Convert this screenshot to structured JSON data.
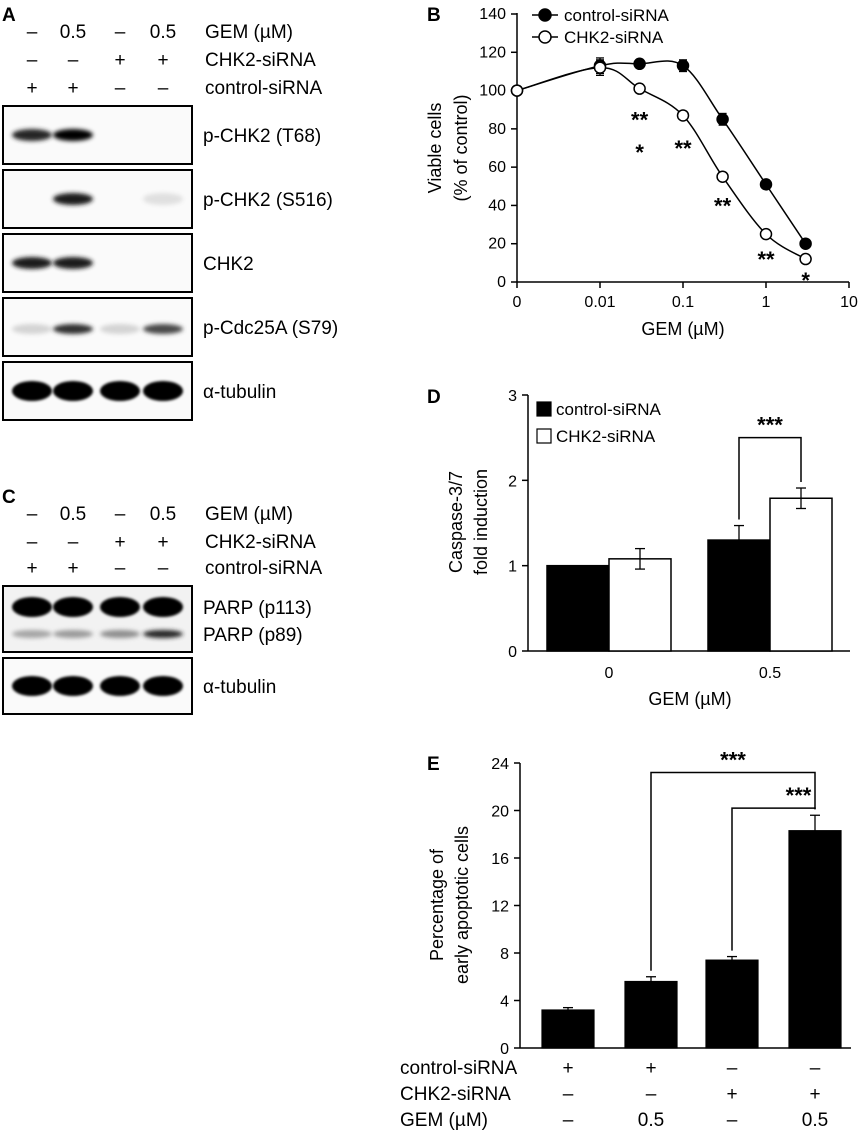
{
  "panel_labels": {
    "a": "A",
    "b": "B",
    "c": "C",
    "d": "D",
    "e": "E"
  },
  "blot_a": {
    "header": {
      "rows": [
        {
          "label": "GEM (µM)",
          "cells": [
            "–",
            "0.5",
            "–",
            "0.5"
          ]
        },
        {
          "label": "CHK2-siRNA",
          "cells": [
            "–",
            "–",
            "+",
            "+"
          ]
        },
        {
          "label": "control-siRNA",
          "cells": [
            "+",
            "+",
            "–",
            "–"
          ]
        }
      ]
    },
    "strips": [
      {
        "label": "p-CHK2 (T68)",
        "intensity": [
          0.85,
          1.0,
          0,
          0
        ]
      },
      {
        "label": "p-CHK2 (S516)",
        "intensity": [
          0,
          0.9,
          0,
          0.05
        ]
      },
      {
        "label": "CHK2",
        "intensity": [
          0.9,
          0.9,
          0,
          0
        ]
      },
      {
        "label": "p-Cdc25A (S79)",
        "intensity": [
          0.1,
          0.8,
          0.1,
          0.7
        ]
      },
      {
        "label": "α-tubulin",
        "intensity": [
          1,
          1,
          1,
          1
        ]
      }
    ]
  },
  "blot_c": {
    "header": {
      "rows": [
        {
          "label": "GEM (µM)",
          "cells": [
            "–",
            "0.5",
            "–",
            "0.5"
          ]
        },
        {
          "label": "CHK2-siRNA",
          "cells": [
            "–",
            "–",
            "+",
            "+"
          ]
        },
        {
          "label": "control-siRNA",
          "cells": [
            "+",
            "+",
            "–",
            "–"
          ]
        }
      ]
    },
    "strips": [
      {
        "labels": [
          "PARP (p113)",
          "PARP (p89)"
        ],
        "intensity": [
          1,
          1,
          1,
          1
        ],
        "intensity2": [
          0.3,
          0.35,
          0.4,
          0.85
        ]
      },
      {
        "label": "α-tubulin",
        "intensity": [
          1,
          1,
          1,
          1
        ]
      }
    ]
  },
  "chart_data": [
    {
      "panel": "B",
      "type": "line",
      "title": "",
      "xlabel": "GEM (µM)",
      "ylabel": "Viable cells (% of control)",
      "ylabel_lines": [
        "Viable cells",
        "(% of control)"
      ],
      "x_scale": "log-with-zero",
      "x_ticks": [
        "0",
        "0.01",
        "0.1",
        "1",
        "10"
      ],
      "y_ticks": [
        "0",
        "20",
        "40",
        "60",
        "80",
        "100",
        "120",
        "140"
      ],
      "ylim": [
        0,
        140
      ],
      "legend_position": "top-right",
      "series": [
        {
          "name": "control-siRNA",
          "marker": "filled",
          "x": [
            0,
            0.01,
            0.03,
            0.1,
            0.3,
            1,
            3
          ],
          "y": [
            100,
            113,
            114,
            113,
            85,
            51,
            20
          ],
          "err": [
            0,
            3,
            0,
            2,
            2,
            0,
            0
          ]
        },
        {
          "name": "CHK2-siRNA",
          "marker": "open",
          "x": [
            0,
            0.01,
            0.03,
            0.1,
            0.3,
            1,
            3
          ],
          "y": [
            100,
            112,
            101,
            87,
            55,
            25,
            12
          ],
          "err": [
            0,
            3,
            0,
            0,
            0,
            0,
            0
          ]
        }
      ],
      "annotations": [
        {
          "text": "**",
          "x": 0.03,
          "y": 86
        },
        {
          "text": "*",
          "x": 0.03,
          "y": 69
        },
        {
          "text": "**",
          "x": 0.1,
          "y": 71
        },
        {
          "text": "**",
          "x": 0.3,
          "y": 41
        },
        {
          "text": "**",
          "x": 1,
          "y": 13
        },
        {
          "text": "*",
          "x": 3,
          "y": 2
        }
      ]
    },
    {
      "panel": "D",
      "type": "bar",
      "title": "",
      "xlabel": "GEM (µM)",
      "ylabel": "Caspase-3/7 fold induction",
      "ylabel_lines": [
        "Caspase-3/7",
        "fold induction"
      ],
      "categories": [
        "0",
        "0.5"
      ],
      "y_ticks": [
        "0",
        "1",
        "2",
        "3"
      ],
      "ylim": [
        0,
        3
      ],
      "legend_position": "top-left",
      "series": [
        {
          "name": "control-siRNA",
          "fill": "#000000",
          "values": [
            1.0,
            1.3
          ],
          "err": [
            0,
            0.17
          ]
        },
        {
          "name": "CHK2-siRNA",
          "fill": "#ffffff",
          "values": [
            1.08,
            1.79
          ],
          "err": [
            0.12,
            0.12
          ]
        }
      ],
      "significance": {
        "text": "***",
        "category": 1,
        "between": [
          0,
          1
        ]
      }
    },
    {
      "panel": "E",
      "type": "bar",
      "title": "",
      "xlabel": "",
      "ylabel": "Percentage of early apoptotic cells",
      "ylabel_lines": [
        "Percentage of",
        "early apoptotic cells"
      ],
      "y_ticks": [
        "0",
        "4",
        "8",
        "12",
        "16",
        "20",
        "24"
      ],
      "ylim": [
        0,
        24
      ],
      "values": [
        3.2,
        5.6,
        7.4,
        18.3
      ],
      "err": [
        0.2,
        0.4,
        0.3,
        1.3
      ],
      "conditions": [
        {
          "label": "control-siRNA",
          "cells": [
            "+",
            "+",
            "–",
            "–"
          ]
        },
        {
          "label": "CHK2-siRNA",
          "cells": [
            "–",
            "–",
            "+",
            "+"
          ]
        },
        {
          "label": "GEM (µM)",
          "cells": [
            "–",
            "0.5",
            "–",
            "0.5"
          ]
        }
      ],
      "significance": [
        {
          "text": "***",
          "from": 1,
          "to": 3
        },
        {
          "text": "***",
          "from": 2,
          "to": 3
        }
      ]
    }
  ]
}
